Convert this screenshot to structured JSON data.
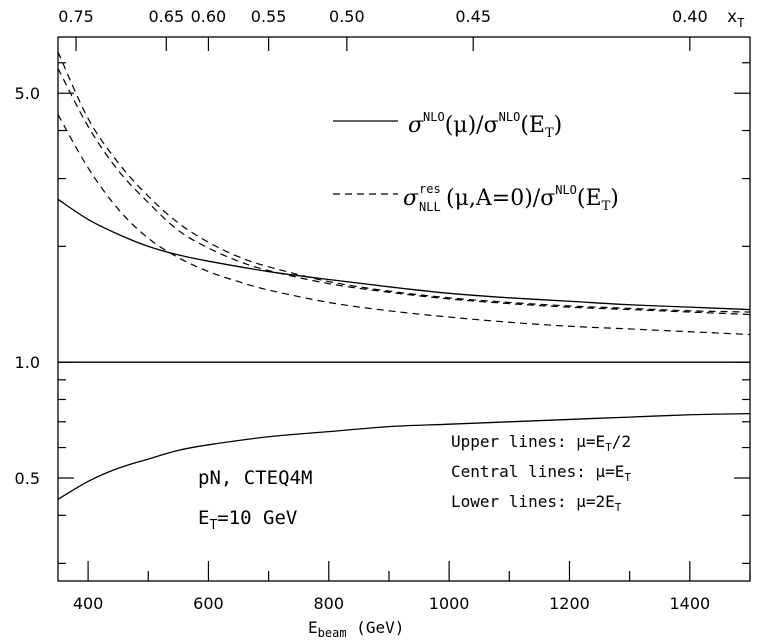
{
  "chart_data": {
    "type": "line",
    "y_scale": "log",
    "grid": false,
    "legend_position": "top-right",
    "xlim": [
      350,
      1500
    ],
    "ylim": [
      0.27,
      7.0
    ],
    "x_ticks": [
      400,
      600,
      800,
      1000,
      1200,
      1400
    ],
    "x_tick_labels": [
      "400",
      "600",
      "800",
      "1000",
      "1200",
      "1400"
    ],
    "y_ticks": [
      0.5,
      1.0,
      5.0
    ],
    "y_tick_labels": [
      "0.5",
      "1.0",
      "5.0"
    ],
    "top_axis": {
      "label": "x",
      "label_sub": "T",
      "tick_labels": [
        "0.75",
        "0.65",
        "0.60",
        "0.55",
        "0.50",
        "0.45",
        "0.40"
      ],
      "tick_positions": [
        380,
        530,
        600,
        700,
        830,
        1040,
        1400
      ]
    },
    "xlabel": {
      "main": "E",
      "sub": "beam",
      "rest": " (GeV)"
    },
    "legend": [
      {
        "style": "solid",
        "sigma": "σ",
        "sup1": "NLO",
        "mid": "(μ)/σ",
        "sup2": "NLO",
        "tail": "(E",
        "tail_sub": "T",
        "end": ")"
      },
      {
        "style": "dashed",
        "sigma": "σ",
        "sup1": "res",
        "sub1": "NLL",
        "mid": " (μ,A=0)/σ",
        "sup2": "NLO",
        "tail": "(E",
        "tail_sub": "T",
        "end": ")"
      }
    ],
    "annotations": {
      "process": "pN, CTEQ4M",
      "et_prefix": "E",
      "et_sub": "T",
      "et_rest": "=10 GeV",
      "scale_lines": [
        {
          "text": "Upper lines: μ=E",
          "sub": "T",
          "tail": "/2"
        },
        {
          "text": "Central lines: μ=E",
          "sub": "T",
          "tail": ""
        },
        {
          "text": "Lower lines: μ=2E",
          "sub": "T",
          "tail": ""
        }
      ]
    },
    "series": [
      {
        "style": "solid",
        "x": [
          350,
          1500
        ],
        "y": [
          1.0,
          1.0
        ]
      },
      {
        "style": "solid",
        "x": [
          350,
          400,
          450,
          500,
          550,
          600,
          700,
          800,
          900,
          1000,
          1100,
          1200,
          1300,
          1400,
          1500
        ],
        "y": [
          2.65,
          2.35,
          2.15,
          2.0,
          1.9,
          1.83,
          1.72,
          1.64,
          1.57,
          1.51,
          1.47,
          1.44,
          1.41,
          1.39,
          1.37
        ]
      },
      {
        "style": "solid",
        "x": [
          350,
          400,
          450,
          500,
          550,
          600,
          700,
          800,
          900,
          1000,
          1100,
          1200,
          1300,
          1400,
          1500
        ],
        "y": [
          0.44,
          0.49,
          0.53,
          0.56,
          0.59,
          0.61,
          0.64,
          0.66,
          0.68,
          0.69,
          0.7,
          0.71,
          0.72,
          0.73,
          0.735
        ]
      },
      {
        "style": "dashed",
        "x": [
          350,
          400,
          450,
          500,
          550,
          600,
          650,
          700,
          800,
          900,
          1000,
          1100,
          1200,
          1300,
          1400,
          1500
        ],
        "y": [
          6.4,
          4.3,
          3.3,
          2.7,
          2.3,
          2.05,
          1.88,
          1.77,
          1.62,
          1.53,
          1.47,
          1.43,
          1.4,
          1.38,
          1.36,
          1.35
        ]
      },
      {
        "style": "dashed",
        "x": [
          350,
          400,
          450,
          500,
          550,
          600,
          650,
          700,
          800,
          900,
          1000,
          1100,
          1200,
          1300,
          1400,
          1500
        ],
        "y": [
          5.8,
          4.1,
          3.15,
          2.6,
          2.2,
          1.98,
          1.83,
          1.73,
          1.6,
          1.52,
          1.46,
          1.42,
          1.39,
          1.37,
          1.35,
          1.33
        ]
      },
      {
        "style": "dashed",
        "x": [
          350,
          400,
          450,
          500,
          550,
          600,
          650,
          700,
          800,
          900,
          1000,
          1100,
          1200,
          1300,
          1400,
          1500
        ],
        "y": [
          4.4,
          3.2,
          2.5,
          2.1,
          1.87,
          1.72,
          1.62,
          1.54,
          1.43,
          1.36,
          1.31,
          1.27,
          1.24,
          1.22,
          1.2,
          1.18
        ]
      }
    ]
  }
}
